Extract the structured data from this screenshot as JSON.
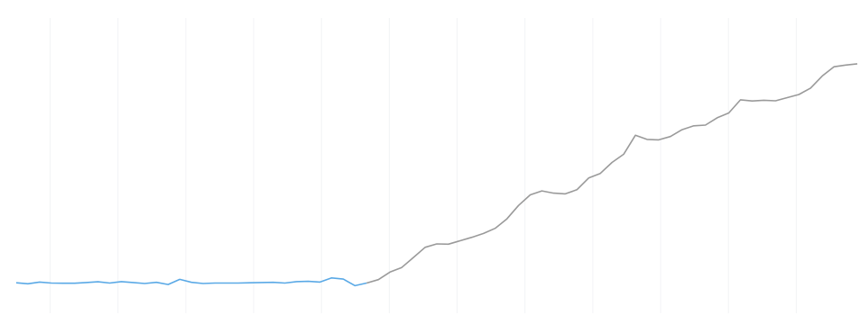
{
  "header": {
    "left_text": "",
    "right_text": ""
  },
  "colors": {
    "background": "#ffffff",
    "line_primary": "#9a9a9a",
    "line_highlight": "#5aa9e6",
    "gridline": "#f2f4f6",
    "tick_label": "#d2d6db"
  },
  "chart_data": {
    "type": "line",
    "title": "",
    "xlabel": "",
    "ylabel": "",
    "grid": true,
    "legend": "none",
    "x_tick_labels": [
      "",
      "",
      "",
      "",
      "",
      "",
      "",
      "",
      "",
      "",
      "",
      ""
    ],
    "y_tick_labels": [],
    "ylim": [
      0,
      100
    ],
    "highlight_until_index": 30,
    "series": [
      {
        "values": [
          4.0,
          3.6,
          4.3,
          3.9,
          3.8,
          3.8,
          4.1,
          4.4,
          3.9,
          4.5,
          4.1,
          3.7,
          4.2,
          3.3,
          5.4,
          4.2,
          3.7,
          3.9,
          3.9,
          3.9,
          4.0,
          4.1,
          4.2,
          3.9,
          4.5,
          4.6,
          4.3,
          6.0,
          5.5,
          2.8,
          3.9,
          5.3,
          8.4,
          10.3,
          14.4,
          18.6,
          20.0,
          19.9,
          21.3,
          22.7,
          24.3,
          26.4,
          30.3,
          35.8,
          40.2,
          41.8,
          40.9,
          40.6,
          42.3,
          47.1,
          49.0,
          53.5,
          56.9,
          64.7,
          63.0,
          62.8,
          64.2,
          67.0,
          68.6,
          68.9,
          71.9,
          73.9,
          79.3,
          78.8,
          79.1,
          78.9,
          80.2,
          81.5,
          84.1,
          89.1,
          92.9,
          93.6,
          94.1
        ]
      }
    ]
  }
}
